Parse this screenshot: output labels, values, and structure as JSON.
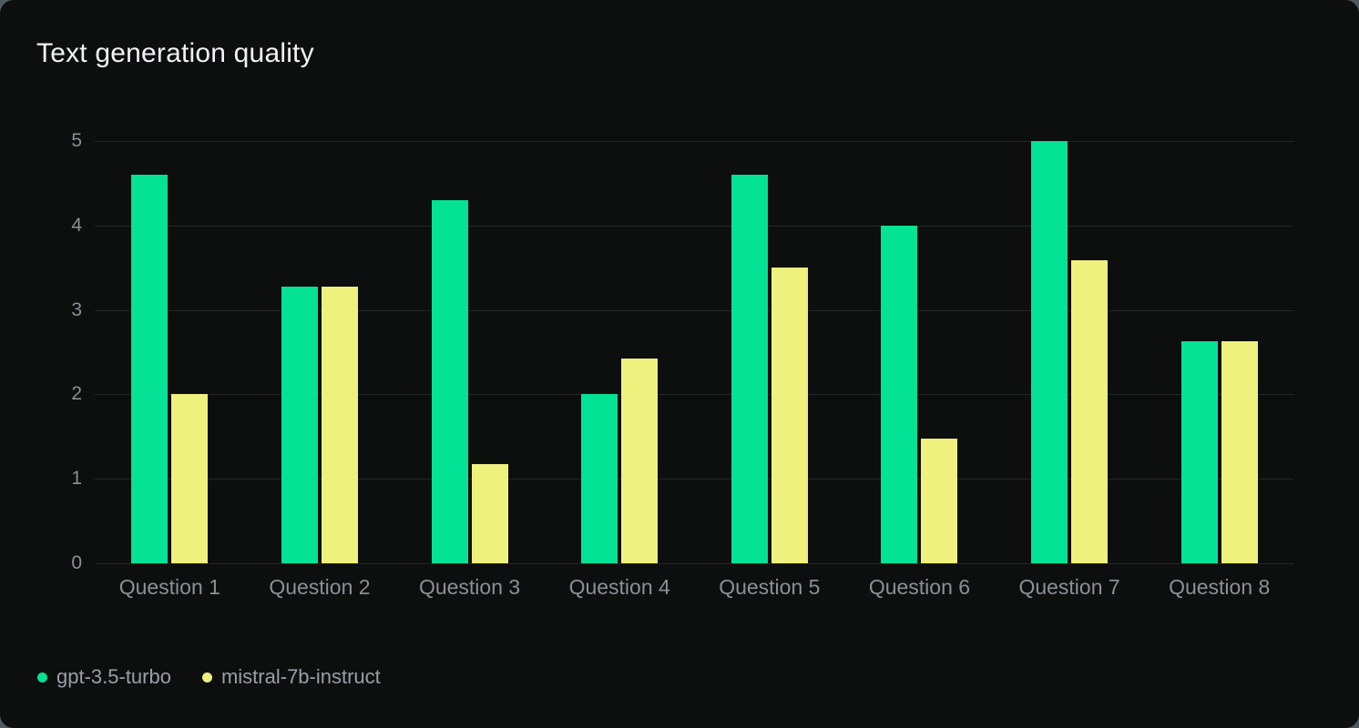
{
  "page": {
    "outer_background": "#4c5a5f",
    "card_background": "#0d0e0e",
    "grid_color": "#242727",
    "axis_text_color": "#8b9097",
    "title_color": "#f2f3f4"
  },
  "chart": {
    "title": "Text generation quality"
  },
  "chart_data": {
    "type": "bar",
    "title": "Text generation quality",
    "categories": [
      "Question 1",
      "Question 2",
      "Question 3",
      "Question 4",
      "Question 5",
      "Question 6",
      "Question 7",
      "Question 8"
    ],
    "series": [
      {
        "name": "gpt-3.5-turbo",
        "color": "#04e296",
        "values": [
          4.6,
          3.28,
          4.3,
          2.0,
          4.6,
          4.0,
          5.0,
          2.63
        ]
      },
      {
        "name": "mistral-7b-instruct",
        "color": "#eef17d",
        "values": [
          2.0,
          3.28,
          1.17,
          2.43,
          3.5,
          1.48,
          3.59,
          2.63
        ]
      }
    ],
    "xlabel": "",
    "ylabel": "",
    "ylim": [
      0,
      5
    ],
    "y_ticks": [
      0,
      1,
      2,
      3,
      4,
      5
    ],
    "grid": true,
    "legend_position": "bottom-left"
  }
}
